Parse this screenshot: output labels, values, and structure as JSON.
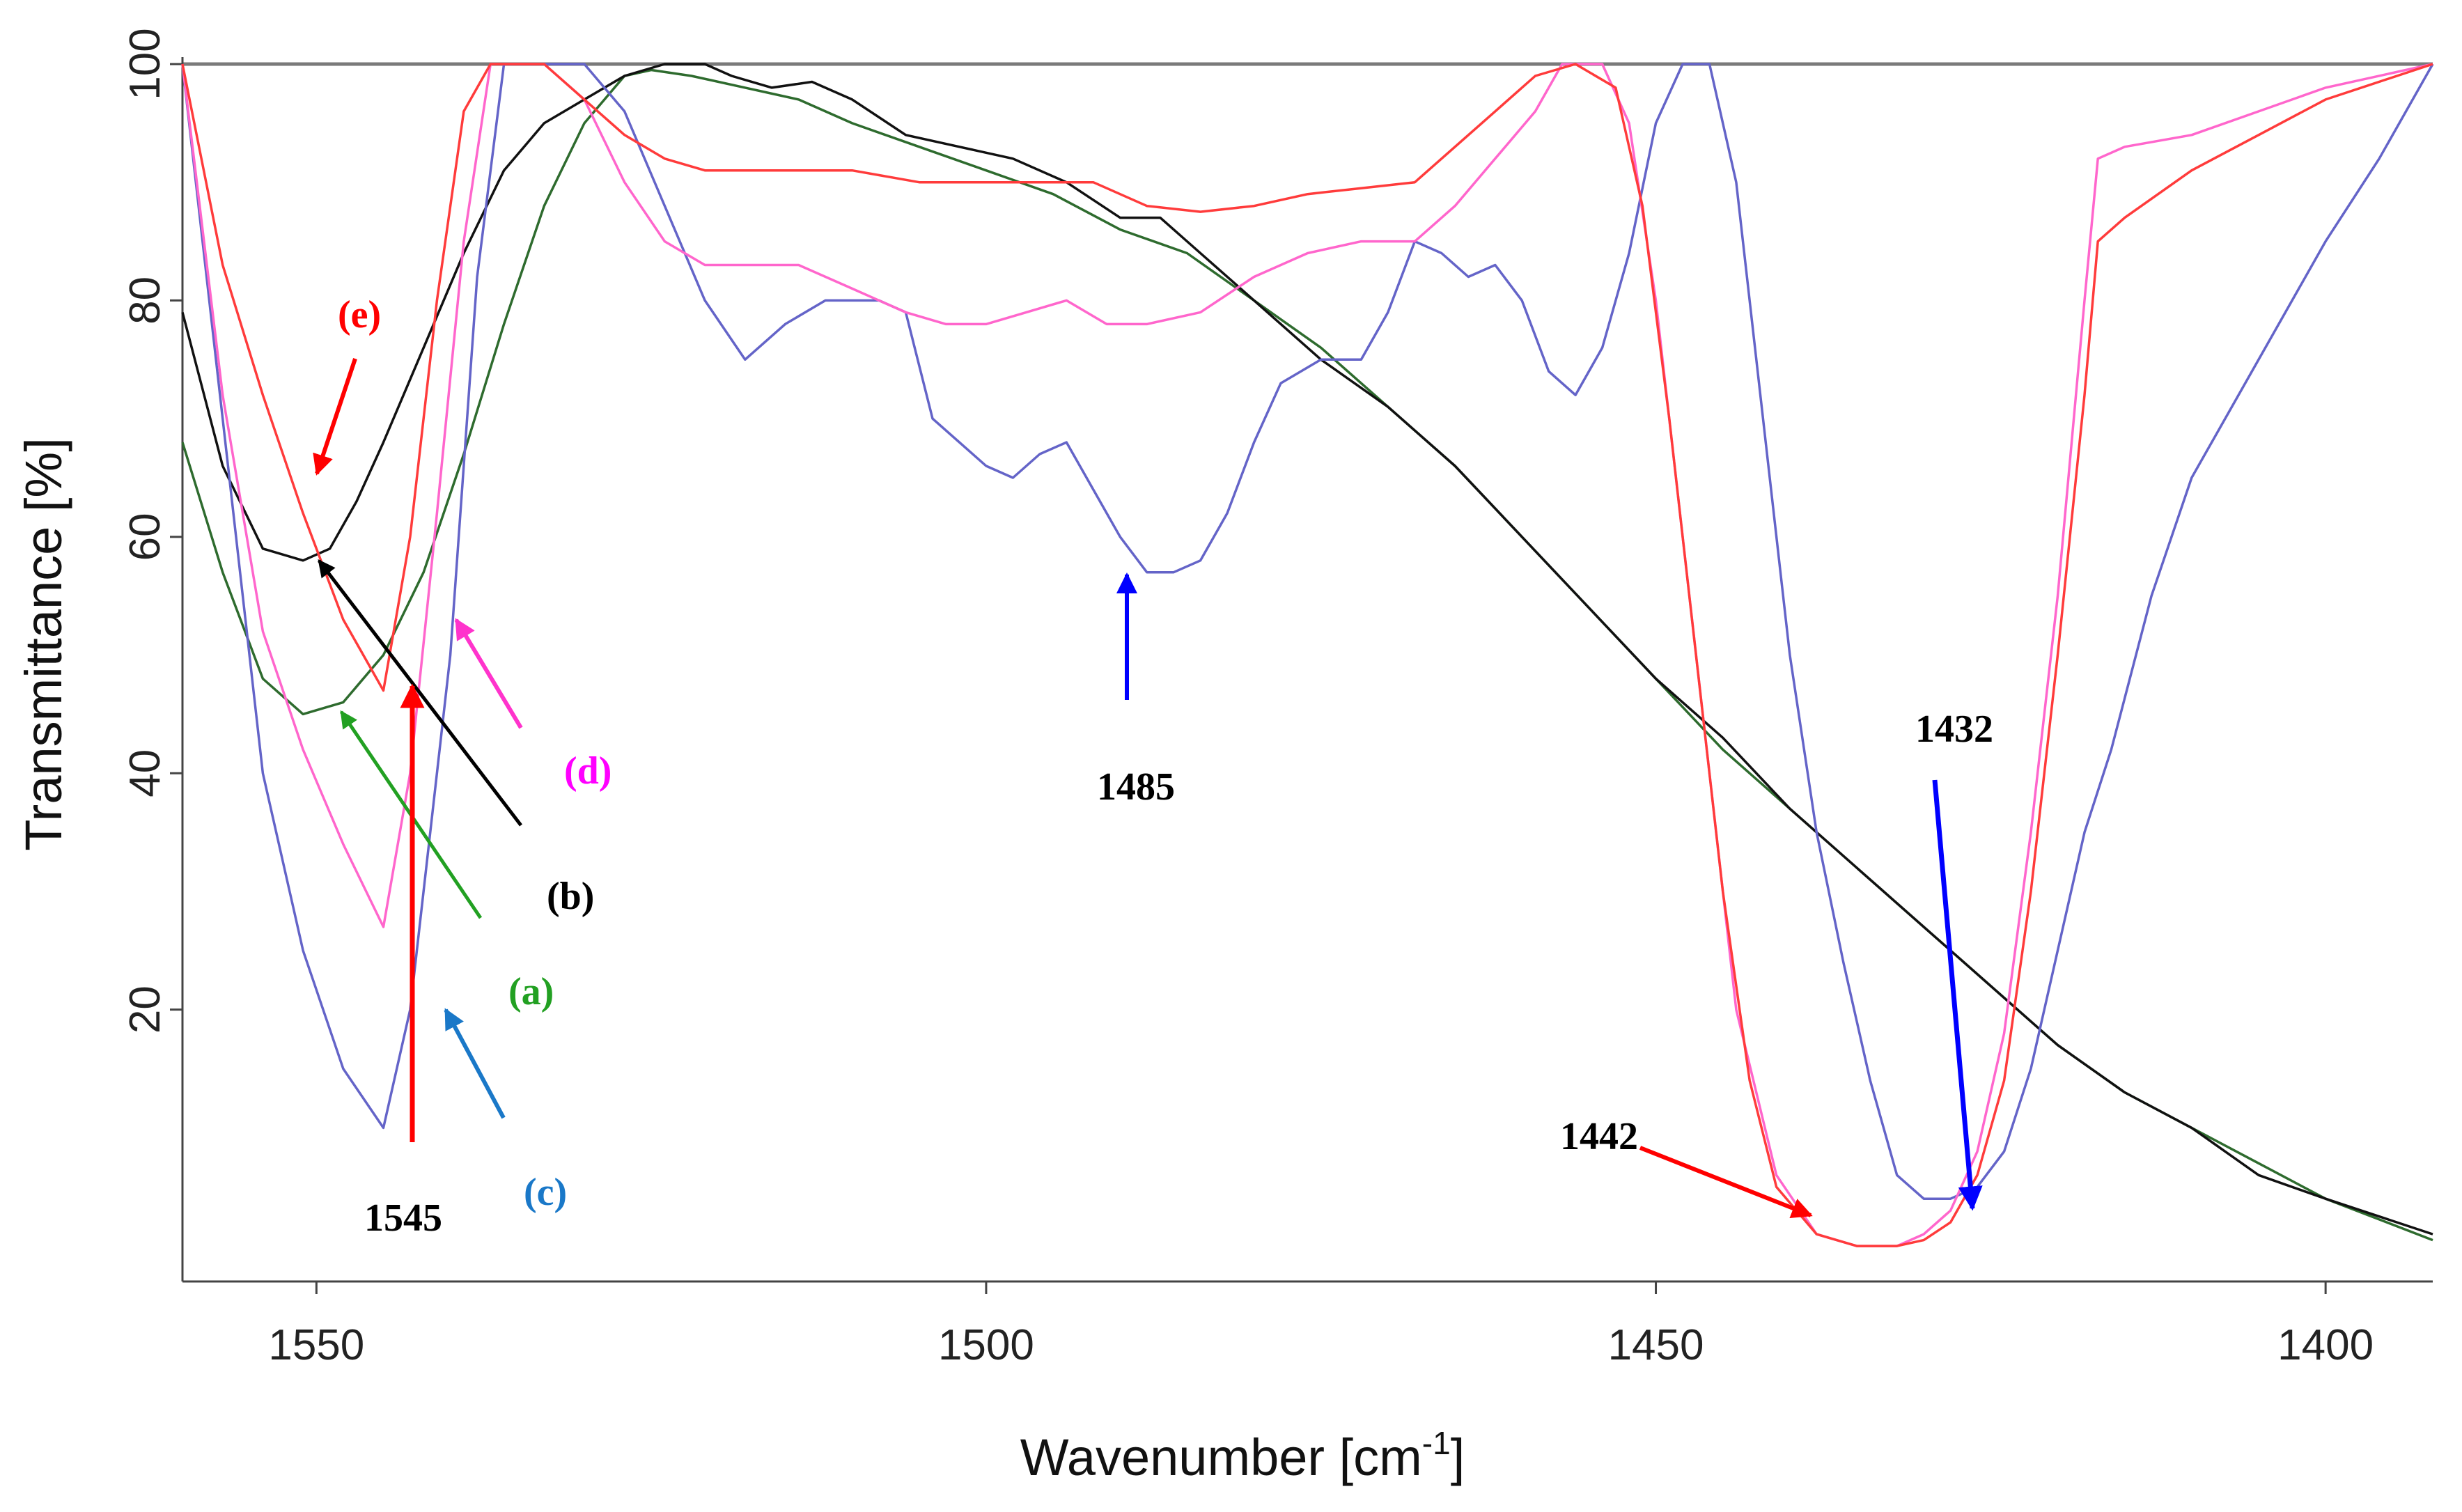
{
  "chart_data": {
    "type": "line",
    "title": "",
    "xlabel": "Wavenumber [cm-1]",
    "xlabel_base": "Wavenumber [cm",
    "xlabel_sup": "-1",
    "xlabel_close": "]",
    "ylabel": "Transmittance [%]",
    "xlim": [
      1560,
      1392
    ],
    "ylim": [
      -3,
      100
    ],
    "grid": false,
    "x_ticks": [
      1550,
      1500,
      1450,
      1400
    ],
    "y_ticks": [
      20,
      40,
      60,
      80,
      100
    ],
    "series": [
      {
        "name": "(a)",
        "color": "#2e6b2e",
        "points": [
          [
            1560,
            68
          ],
          [
            1557,
            57
          ],
          [
            1554,
            48
          ],
          [
            1551,
            45
          ],
          [
            1548,
            46
          ],
          [
            1545,
            50
          ],
          [
            1542,
            57
          ],
          [
            1539,
            67
          ],
          [
            1536,
            78
          ],
          [
            1533,
            88
          ],
          [
            1530,
            95
          ],
          [
            1527,
            99
          ],
          [
            1525,
            99.5
          ],
          [
            1522,
            99
          ],
          [
            1518,
            98
          ],
          [
            1514,
            97
          ],
          [
            1510,
            95
          ],
          [
            1505,
            93
          ],
          [
            1500,
            91
          ],
          [
            1495,
            89
          ],
          [
            1490,
            86
          ],
          [
            1485,
            84
          ],
          [
            1480,
            80
          ],
          [
            1475,
            76
          ],
          [
            1470,
            71
          ],
          [
            1465,
            66
          ],
          [
            1460,
            60
          ],
          [
            1455,
            54
          ],
          [
            1450,
            48
          ],
          [
            1445,
            42
          ],
          [
            1440,
            37
          ],
          [
            1435,
            32
          ],
          [
            1430,
            27
          ],
          [
            1425,
            22
          ],
          [
            1420,
            17
          ],
          [
            1415,
            13
          ],
          [
            1410,
            10
          ],
          [
            1405,
            7
          ],
          [
            1400,
            4
          ],
          [
            1392,
            0.5
          ]
        ]
      },
      {
        "name": "(b)",
        "color": "#111111",
        "points": [
          [
            1560,
            79
          ],
          [
            1557,
            66
          ],
          [
            1554,
            59
          ],
          [
            1551,
            58
          ],
          [
            1549,
            59
          ],
          [
            1547,
            63
          ],
          [
            1545,
            68
          ],
          [
            1542,
            76
          ],
          [
            1539,
            84
          ],
          [
            1536,
            91
          ],
          [
            1533,
            95
          ],
          [
            1530,
            97
          ],
          [
            1527,
            99
          ],
          [
            1524,
            100
          ],
          [
            1521,
            100
          ],
          [
            1519,
            99
          ],
          [
            1516,
            98
          ],
          [
            1513,
            98.5
          ],
          [
            1510,
            97
          ],
          [
            1506,
            94
          ],
          [
            1502,
            93
          ],
          [
            1498,
            92
          ],
          [
            1494,
            90
          ],
          [
            1490,
            87
          ],
          [
            1487,
            87
          ],
          [
            1484,
            84
          ],
          [
            1480,
            80
          ],
          [
            1475,
            75
          ],
          [
            1470,
            71
          ],
          [
            1465,
            66
          ],
          [
            1460,
            60
          ],
          [
            1455,
            54
          ],
          [
            1450,
            48
          ],
          [
            1445,
            43
          ],
          [
            1440,
            37
          ],
          [
            1435,
            32
          ],
          [
            1430,
            27
          ],
          [
            1425,
            22
          ],
          [
            1420,
            17
          ],
          [
            1415,
            13
          ],
          [
            1410,
            10
          ],
          [
            1405,
            6
          ],
          [
            1400,
            4
          ],
          [
            1392,
            1
          ]
        ]
      },
      {
        "name": "(c)",
        "color": "#6464c8",
        "points": [
          [
            1560,
            100
          ],
          [
            1557,
            70
          ],
          [
            1554,
            40
          ],
          [
            1551,
            25
          ],
          [
            1548,
            15
          ],
          [
            1545,
            10
          ],
          [
            1543,
            20
          ],
          [
            1540,
            50
          ],
          [
            1538,
            82
          ],
          [
            1536,
            100
          ],
          [
            1533,
            100
          ],
          [
            1530,
            100
          ],
          [
            1527,
            96
          ],
          [
            1524,
            88
          ],
          [
            1521,
            80
          ],
          [
            1518,
            75
          ],
          [
            1515,
            78
          ],
          [
            1512,
            80
          ],
          [
            1508,
            80
          ],
          [
            1506,
            79
          ],
          [
            1504,
            70
          ],
          [
            1502,
            68
          ],
          [
            1500,
            66
          ],
          [
            1498,
            65
          ],
          [
            1496,
            67
          ],
          [
            1494,
            68
          ],
          [
            1492,
            64
          ],
          [
            1490,
            60
          ],
          [
            1488,
            57
          ],
          [
            1486,
            57
          ],
          [
            1484,
            58
          ],
          [
            1482,
            62
          ],
          [
            1480,
            68
          ],
          [
            1478,
            73
          ],
          [
            1475,
            75
          ],
          [
            1472,
            75
          ],
          [
            1470,
            79
          ],
          [
            1468,
            85
          ],
          [
            1466,
            84
          ],
          [
            1464,
            82
          ],
          [
            1462,
            83
          ],
          [
            1460,
            80
          ],
          [
            1458,
            74
          ],
          [
            1456,
            72
          ],
          [
            1454,
            76
          ],
          [
            1452,
            84
          ],
          [
            1450,
            95
          ],
          [
            1448,
            100
          ],
          [
            1446,
            100
          ],
          [
            1444,
            90
          ],
          [
            1442,
            70
          ],
          [
            1440,
            50
          ],
          [
            1438,
            35
          ],
          [
            1436,
            24
          ],
          [
            1434,
            14
          ],
          [
            1432,
            6
          ],
          [
            1430,
            4
          ],
          [
            1428,
            4
          ],
          [
            1426,
            5
          ],
          [
            1424,
            8
          ],
          [
            1422,
            15
          ],
          [
            1420,
            25
          ],
          [
            1418,
            35
          ],
          [
            1416,
            42
          ],
          [
            1413,
            55
          ],
          [
            1410,
            65
          ],
          [
            1405,
            75
          ],
          [
            1400,
            85
          ],
          [
            1396,
            92
          ],
          [
            1392,
            100
          ]
        ]
      },
      {
        "name": "(d)",
        "color": "#ff66cc",
        "points": [
          [
            1560,
            100
          ],
          [
            1557,
            72
          ],
          [
            1554,
            52
          ],
          [
            1551,
            42
          ],
          [
            1548,
            34
          ],
          [
            1545,
            27
          ],
          [
            1543,
            40
          ],
          [
            1541,
            62
          ],
          [
            1539,
            85
          ],
          [
            1537,
            100
          ],
          [
            1533,
            100
          ],
          [
            1530,
            97
          ],
          [
            1527,
            90
          ],
          [
            1524,
            85
          ],
          [
            1521,
            83
          ],
          [
            1518,
            83
          ],
          [
            1514,
            83
          ],
          [
            1510,
            81
          ],
          [
            1506,
            79
          ],
          [
            1503,
            78
          ],
          [
            1500,
            78
          ],
          [
            1497,
            79
          ],
          [
            1494,
            80
          ],
          [
            1491,
            78
          ],
          [
            1488,
            78
          ],
          [
            1484,
            79
          ],
          [
            1480,
            82
          ],
          [
            1476,
            84
          ],
          [
            1472,
            85
          ],
          [
            1468,
            85
          ],
          [
            1465,
            88
          ],
          [
            1462,
            92
          ],
          [
            1459,
            96
          ],
          [
            1457,
            100
          ],
          [
            1454,
            100
          ],
          [
            1452,
            95
          ],
          [
            1450,
            80
          ],
          [
            1448,
            60
          ],
          [
            1446,
            40
          ],
          [
            1444,
            20
          ],
          [
            1441,
            6
          ],
          [
            1438,
            1
          ],
          [
            1435,
            0
          ],
          [
            1432,
            0
          ],
          [
            1430,
            1
          ],
          [
            1428,
            3
          ],
          [
            1426,
            8
          ],
          [
            1424,
            18
          ],
          [
            1422,
            35
          ],
          [
            1420,
            55
          ],
          [
            1418,
            80
          ],
          [
            1417,
            92
          ],
          [
            1415,
            93
          ],
          [
            1410,
            94
          ],
          [
            1405,
            96
          ],
          [
            1400,
            98
          ],
          [
            1392,
            100
          ]
        ]
      },
      {
        "name": "(e)",
        "color": "#ff3b3b",
        "points": [
          [
            1560,
            100
          ],
          [
            1557,
            83
          ],
          [
            1554,
            72
          ],
          [
            1551,
            62
          ],
          [
            1548,
            53
          ],
          [
            1545,
            47
          ],
          [
            1543,
            60
          ],
          [
            1541,
            80
          ],
          [
            1539,
            96
          ],
          [
            1537,
            100
          ],
          [
            1533,
            100
          ],
          [
            1530,
            97
          ],
          [
            1527,
            94
          ],
          [
            1524,
            92
          ],
          [
            1521,
            91
          ],
          [
            1518,
            91
          ],
          [
            1514,
            91
          ],
          [
            1510,
            91
          ],
          [
            1505,
            90
          ],
          [
            1500,
            90
          ],
          [
            1496,
            90
          ],
          [
            1492,
            90
          ],
          [
            1488,
            88
          ],
          [
            1484,
            87.5
          ],
          [
            1480,
            88
          ],
          [
            1476,
            89
          ],
          [
            1472,
            89.5
          ],
          [
            1468,
            90
          ],
          [
            1465,
            93
          ],
          [
            1462,
            96
          ],
          [
            1459,
            99
          ],
          [
            1456,
            100
          ],
          [
            1453,
            98
          ],
          [
            1451,
            88
          ],
          [
            1449,
            70
          ],
          [
            1447,
            50
          ],
          [
            1445,
            30
          ],
          [
            1443,
            14
          ],
          [
            1441,
            5
          ],
          [
            1438,
            1
          ],
          [
            1435,
            0
          ],
          [
            1432,
            0
          ],
          [
            1430,
            0.5
          ],
          [
            1428,
            2
          ],
          [
            1426,
            6
          ],
          [
            1424,
            14
          ],
          [
            1422,
            30
          ],
          [
            1420,
            50
          ],
          [
            1418,
            72
          ],
          [
            1417,
            85
          ],
          [
            1415,
            87
          ],
          [
            1410,
            91
          ],
          [
            1405,
            94
          ],
          [
            1400,
            97
          ],
          [
            1392,
            100
          ]
        ]
      }
    ],
    "annotations": [
      {
        "label": "(e)",
        "color": "#ff0000"
      },
      {
        "label": "(d)",
        "color": "#ff00ff"
      },
      {
        "label": "(b)",
        "color": "#000000"
      },
      {
        "label": "(a)",
        "color": "#22a022"
      },
      {
        "label": "(c)",
        "color": "#1a78c8"
      },
      {
        "label": "1545",
        "color": "#000000"
      },
      {
        "label": "1485",
        "color": "#000000"
      },
      {
        "label": "1432",
        "color": "#000000"
      },
      {
        "label": "1442",
        "color": "#000000"
      }
    ]
  }
}
